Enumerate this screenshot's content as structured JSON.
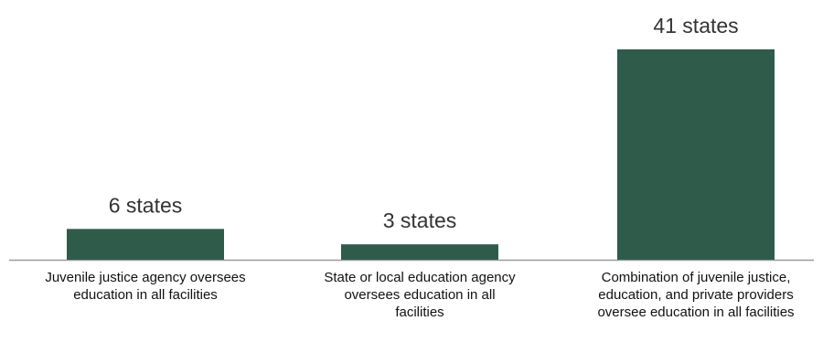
{
  "chart_data": {
    "type": "bar",
    "categories": [
      "Juvenile justice agency oversees education in all facilities",
      "State or local education agency oversees education in all facilities",
      "Combination of juvenile justice, education, and private providers oversee education in all facilities"
    ],
    "values": [
      6,
      3,
      41
    ],
    "data_labels": [
      "6 states",
      "3 states",
      "41 states"
    ],
    "title": "",
    "xlabel": "",
    "ylabel": "",
    "ylim": [
      0,
      41
    ],
    "grid": false,
    "legend": "none",
    "colors": {
      "bar": "#2f5b4b",
      "axis": "#9a9a9a",
      "label_text": "#333333"
    }
  }
}
